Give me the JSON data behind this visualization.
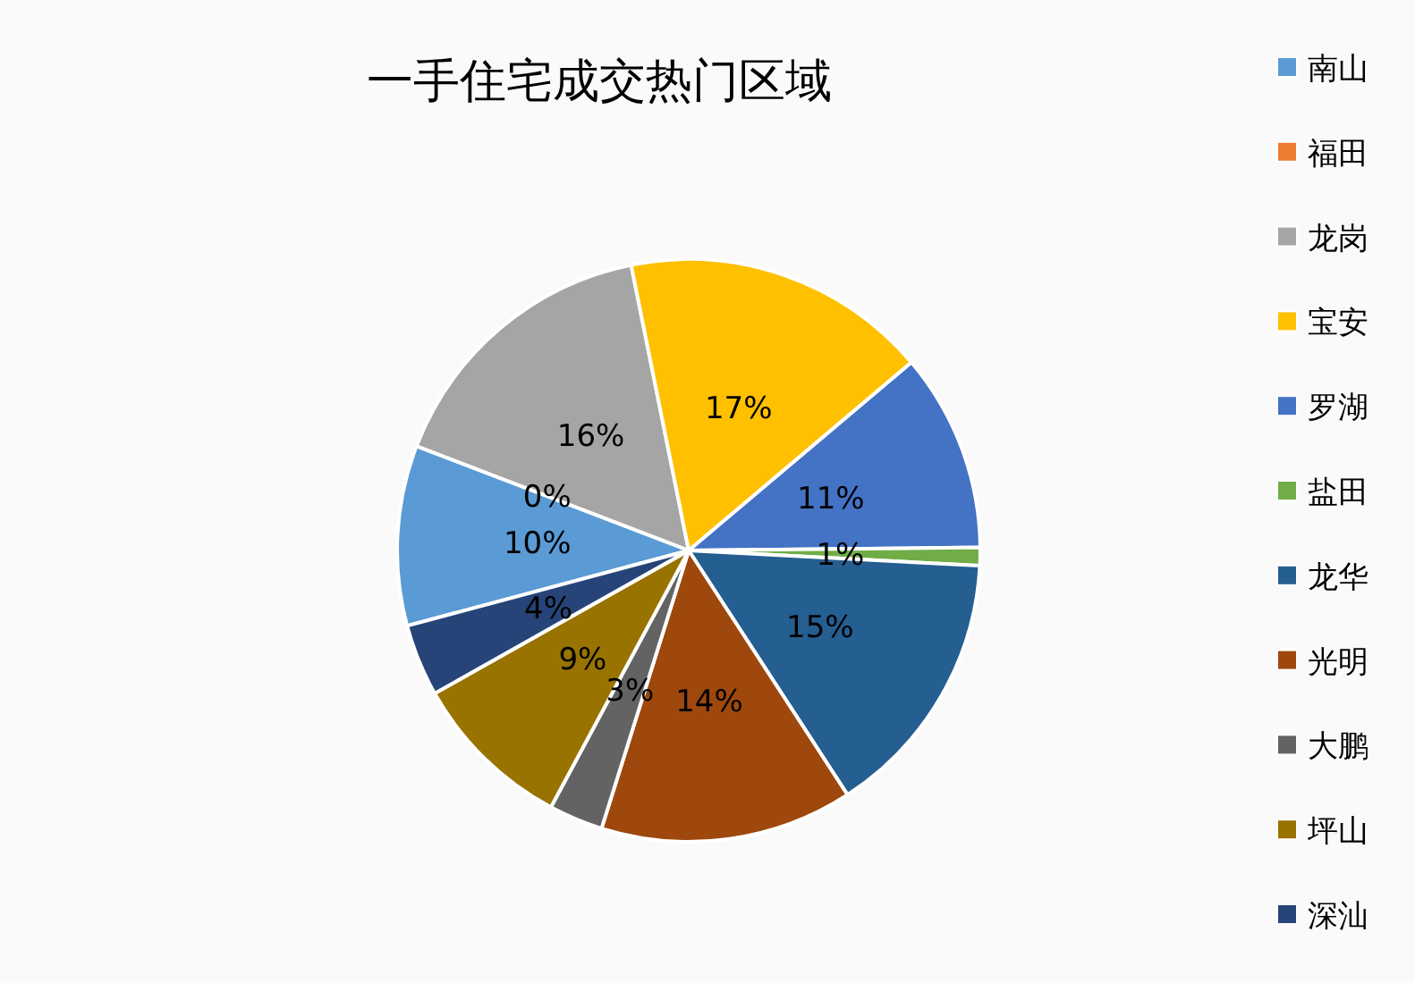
{
  "chart_data": {
    "type": "pie",
    "title": "一手住宅成交热门区域",
    "categories": [
      "南山",
      "福田",
      "龙岗",
      "宝安",
      "罗湖",
      "盐田",
      "龙华",
      "光明",
      "大鹏",
      "坪山",
      "深汕"
    ],
    "values": [
      10,
      0,
      16,
      17,
      11,
      1,
      15,
      14,
      3,
      9,
      4
    ],
    "colors": [
      "#5b9bd5",
      "#ed7d31",
      "#a5a5a5",
      "#ffc000",
      "#4472c4",
      "#70ad47",
      "#255e91",
      "#9e480e",
      "#636363",
      "#997300",
      "#264478"
    ],
    "value_labels": [
      "10%",
      "0%",
      "16%",
      "17%",
      "11%",
      "1%",
      "15%",
      "14%",
      "3%",
      "9%",
      "4%"
    ],
    "legend": "right"
  }
}
